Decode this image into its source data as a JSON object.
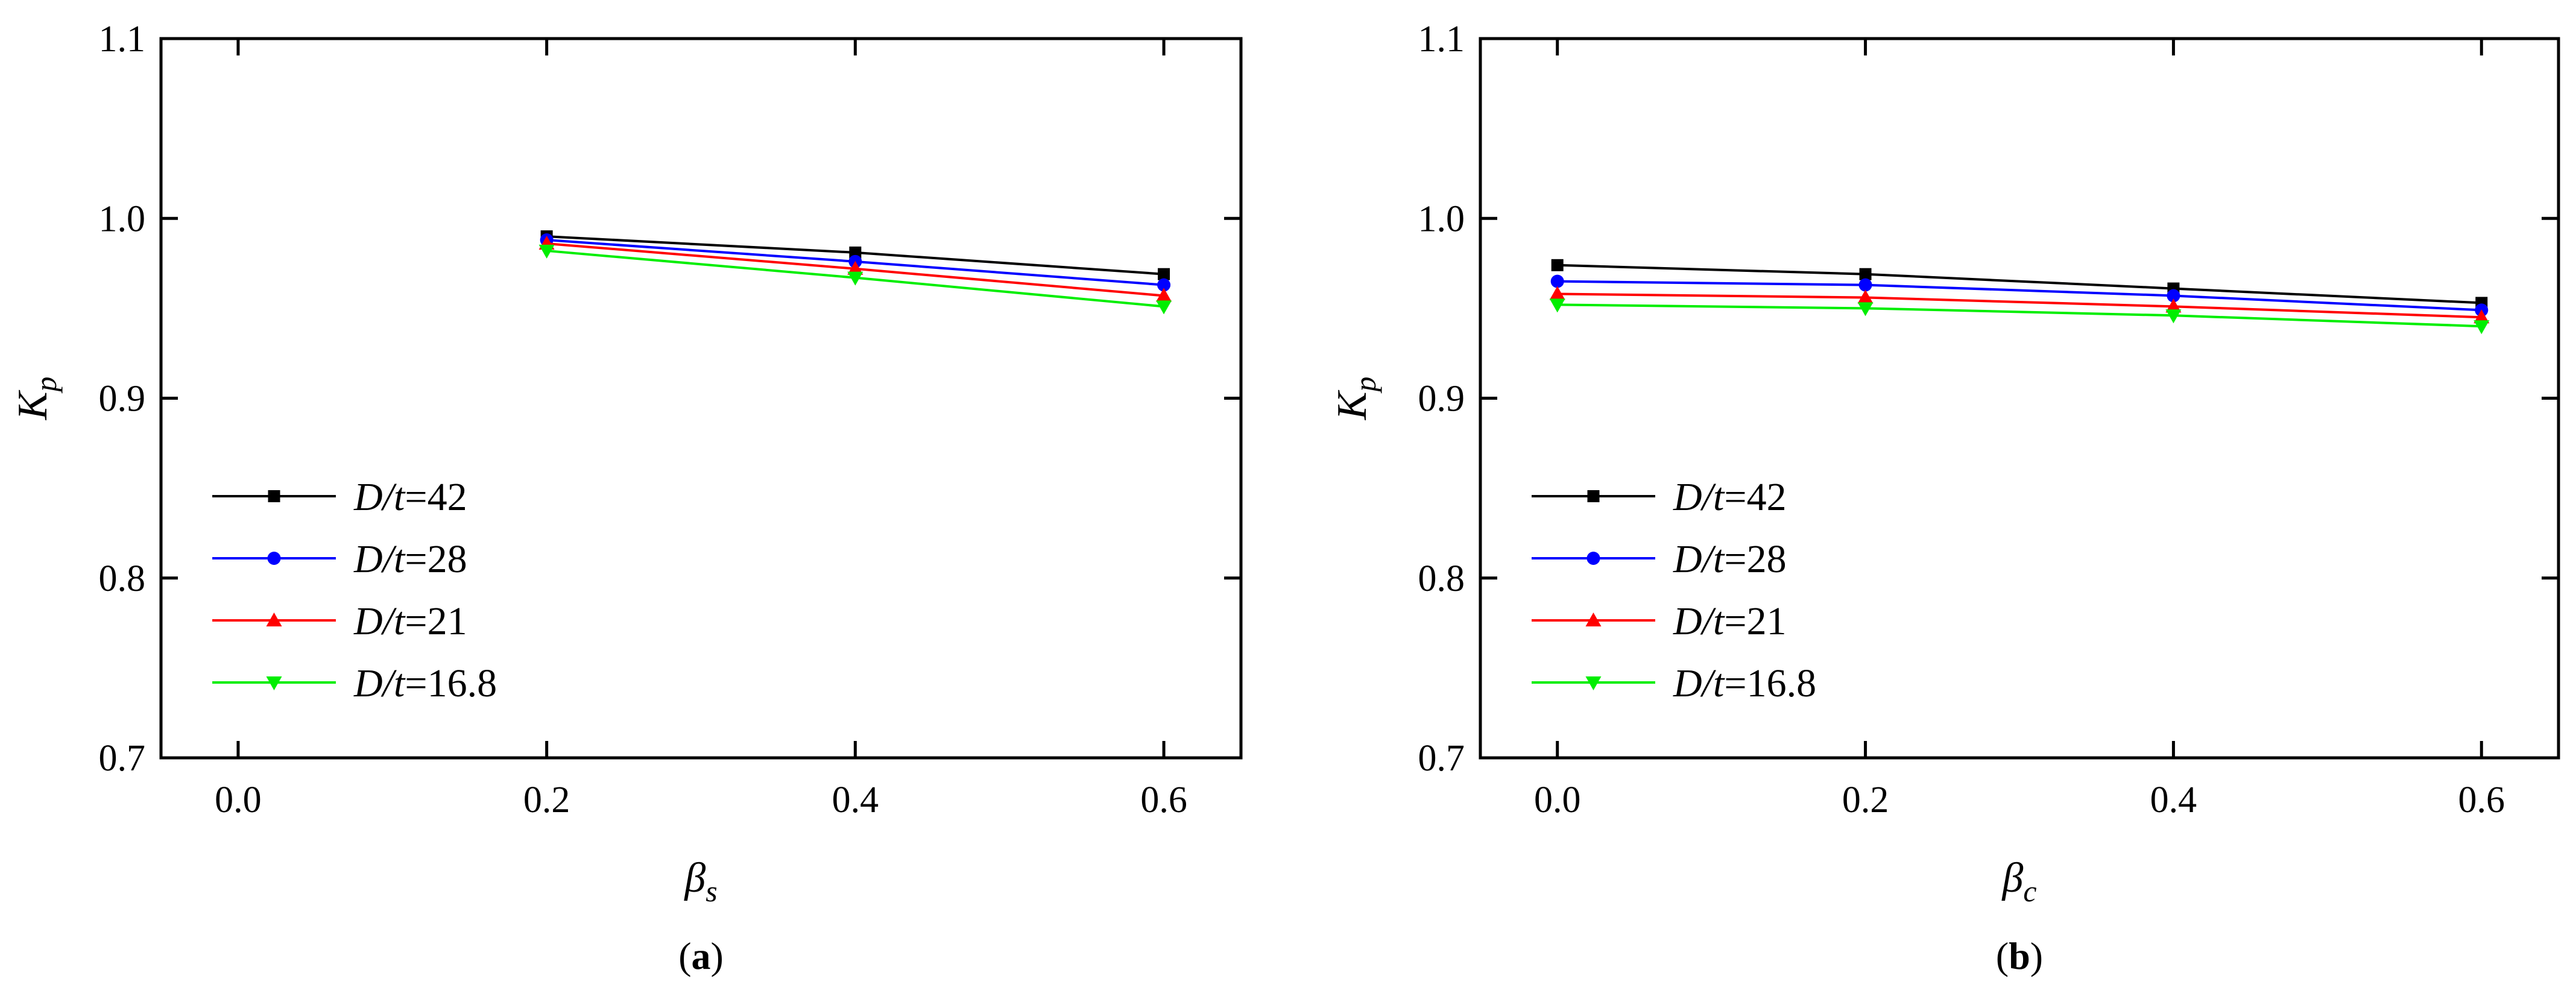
{
  "chart_data": [
    {
      "type": "line",
      "panel_label": "a",
      "x": [
        0.2,
        0.4,
        0.6
      ],
      "xlim": [
        -0.05,
        0.65
      ],
      "ylim": [
        0.7,
        1.1
      ],
      "xticks": [
        "0.0",
        "0.2",
        "0.4",
        "0.6"
      ],
      "xtick_values": [
        0.0,
        0.2,
        0.4,
        0.6
      ],
      "yticks": [
        "0.7",
        "0.8",
        "0.9",
        "1.0",
        "1.1"
      ],
      "ytick_values": [
        0.7,
        0.8,
        0.9,
        1.0,
        1.1
      ],
      "xlabel": {
        "base": "β",
        "sub": "s"
      },
      "ylabel": {
        "base": "K",
        "sub": "p"
      },
      "legend_position": "bottom-left",
      "series": [
        {
          "name": "D/t=42",
          "prefix": "D/",
          "var": "t",
          "value": "=42",
          "color": "#000000",
          "marker": "square",
          "values": [
            0.99,
            0.981,
            0.969
          ]
        },
        {
          "name": "D/t=28",
          "prefix": "D/",
          "var": "t",
          "value": "=28",
          "color": "#0000ff",
          "marker": "circle",
          "values": [
            0.988,
            0.976,
            0.963
          ]
        },
        {
          "name": "D/t=21",
          "prefix": "D/",
          "var": "t",
          "value": "=21",
          "color": "#ff0000",
          "marker": "triangle-up",
          "values": [
            0.986,
            0.972,
            0.957
          ]
        },
        {
          "name": "D/t=16.8",
          "prefix": "D/",
          "var": "t",
          "value": "=16.8",
          "color": "#00ee00",
          "marker": "triangle-down",
          "values": [
            0.982,
            0.967,
            0.951
          ]
        }
      ]
    },
    {
      "type": "line",
      "panel_label": "b",
      "x": [
        0.0,
        0.2,
        0.4,
        0.6
      ],
      "xlim": [
        -0.05,
        0.65
      ],
      "ylim": [
        0.7,
        1.1
      ],
      "xticks": [
        "0.0",
        "0.2",
        "0.4",
        "0.6"
      ],
      "xtick_values": [
        0.0,
        0.2,
        0.4,
        0.6
      ],
      "yticks": [
        "0.7",
        "0.8",
        "0.9",
        "1.0",
        "1.1"
      ],
      "ytick_values": [
        0.7,
        0.8,
        0.9,
        1.0,
        1.1
      ],
      "xlabel": {
        "base": "β",
        "sub": "c"
      },
      "ylabel": {
        "base": "K",
        "sub": "p"
      },
      "legend_position": "bottom-left",
      "series": [
        {
          "name": "D/t=42",
          "prefix": "D/",
          "var": "t",
          "value": "=42",
          "color": "#000000",
          "marker": "square",
          "values": [
            0.974,
            0.969,
            0.961,
            0.953
          ]
        },
        {
          "name": "D/t=28",
          "prefix": "D/",
          "var": "t",
          "value": "=28",
          "color": "#0000ff",
          "marker": "circle",
          "values": [
            0.965,
            0.963,
            0.957,
            0.949
          ]
        },
        {
          "name": "D/t=21",
          "prefix": "D/",
          "var": "t",
          "value": "=21",
          "color": "#ff0000",
          "marker": "triangle-up",
          "values": [
            0.958,
            0.956,
            0.951,
            0.945
          ]
        },
        {
          "name": "D/t=16.8",
          "prefix": "D/",
          "var": "t",
          "value": "=16.8",
          "color": "#00ee00",
          "marker": "triangle-down",
          "values": [
            0.952,
            0.95,
            0.946,
            0.94
          ]
        }
      ]
    }
  ]
}
